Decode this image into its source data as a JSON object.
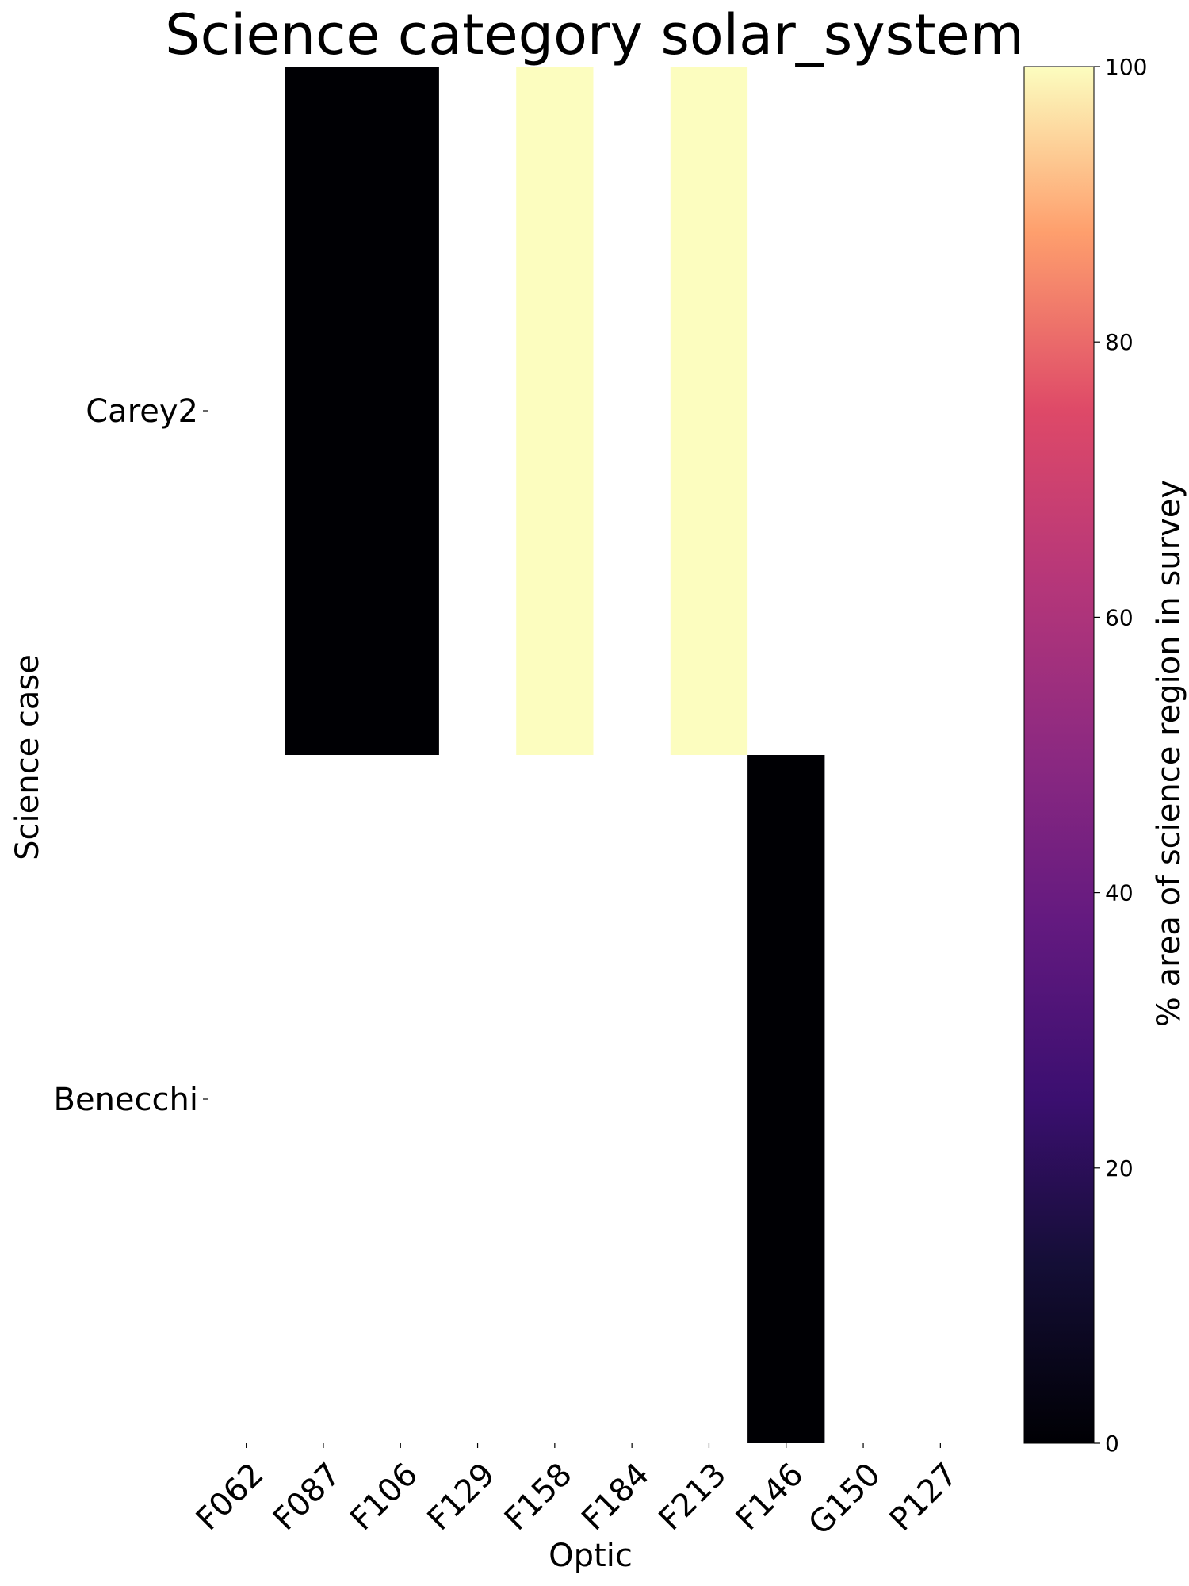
{
  "chart_data": {
    "type": "heatmap",
    "title": "Science category solar_system",
    "xlabel": "Optic",
    "ylabel": "Science case",
    "x_categories": [
      "F062",
      "F087",
      "F106",
      "F129",
      "F158",
      "F184",
      "F213",
      "F146",
      "G150",
      "P127"
    ],
    "y_categories": [
      "Carey2",
      "Benecchi"
    ],
    "cells": [
      {
        "row": "Carey2",
        "col_start": "F087",
        "col_end": "F106",
        "value": 0
      },
      {
        "row": "Carey2",
        "col_start": "F158",
        "col_end": "F158",
        "value": 100
      },
      {
        "row": "Carey2",
        "col_start": "F213",
        "col_end": "F213",
        "value": 100
      },
      {
        "row": "Benecchi",
        "col_start": "F146",
        "col_end": "F146",
        "value": 0
      }
    ],
    "colorbar": {
      "label": "% area of science region in survey",
      "range": [
        0,
        100
      ],
      "ticks": [
        0,
        20,
        40,
        60,
        80,
        100
      ],
      "colormap": "magma"
    },
    "grid": false
  }
}
